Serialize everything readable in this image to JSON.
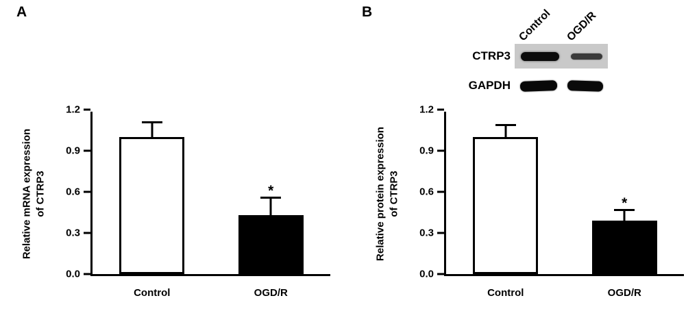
{
  "figure": {
    "panels": [
      {
        "label": "A"
      },
      {
        "label": "B",
        "blot": {
          "lane_labels": [
            "Control",
            "OGD/R"
          ],
          "row_labels": [
            "CTRP3",
            "GAPDH"
          ]
        }
      }
    ]
  },
  "chart_data": [
    {
      "type": "bar",
      "panel": "A",
      "title": "",
      "categories": [
        "Control",
        "OGD/R"
      ],
      "values": [
        1.0,
        0.43
      ],
      "errors": [
        0.1,
        0.12
      ],
      "annotations": [
        "",
        "*"
      ],
      "bar_colors": [
        "#ffffff",
        "#000000"
      ],
      "ylabel_lines": [
        "Relative mRNA expression",
        "of CTRP3"
      ],
      "xlabel": "",
      "ylim": [
        0,
        1.2
      ],
      "yticks": [
        0,
        0.3,
        0.6,
        0.9,
        1.2
      ],
      "ytick_labels": [
        "0.0",
        "0.3",
        "0.6",
        "0.9",
        "1.2"
      ],
      "grid": false,
      "legend": "none"
    },
    {
      "type": "bar",
      "panel": "B",
      "title": "",
      "categories": [
        "Control",
        "OGD/R"
      ],
      "values": [
        1.0,
        0.39
      ],
      "errors": [
        0.08,
        0.07
      ],
      "annotations": [
        "",
        "*"
      ],
      "bar_colors": [
        "#ffffff",
        "#000000"
      ],
      "ylabel_lines": [
        "Relative protein expression",
        "of CTRP3"
      ],
      "xlabel": "",
      "ylim": [
        0,
        1.2
      ],
      "yticks": [
        0,
        0.3,
        0.6,
        0.9,
        1.2
      ],
      "ytick_labels": [
        "0.0",
        "0.3",
        "0.6",
        "0.9",
        "1.2"
      ],
      "grid": false,
      "legend": "none"
    }
  ]
}
